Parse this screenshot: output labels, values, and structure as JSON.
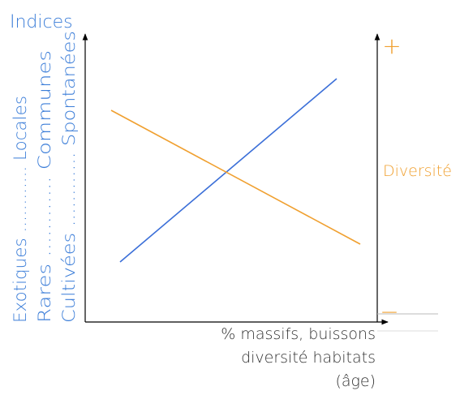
{
  "title": "Indices",
  "left_labels": [
    "Exotiques ............ Locales",
    "Rares ............ Communes",
    "Cultivées ............ Spontanées"
  ],
  "right_axis": {
    "plus": "+",
    "minus": "−",
    "label": "Diversité"
  },
  "x_label": [
    "% massifs, buissons",
    "diversité habitats",
    "(âge)"
  ]
}
